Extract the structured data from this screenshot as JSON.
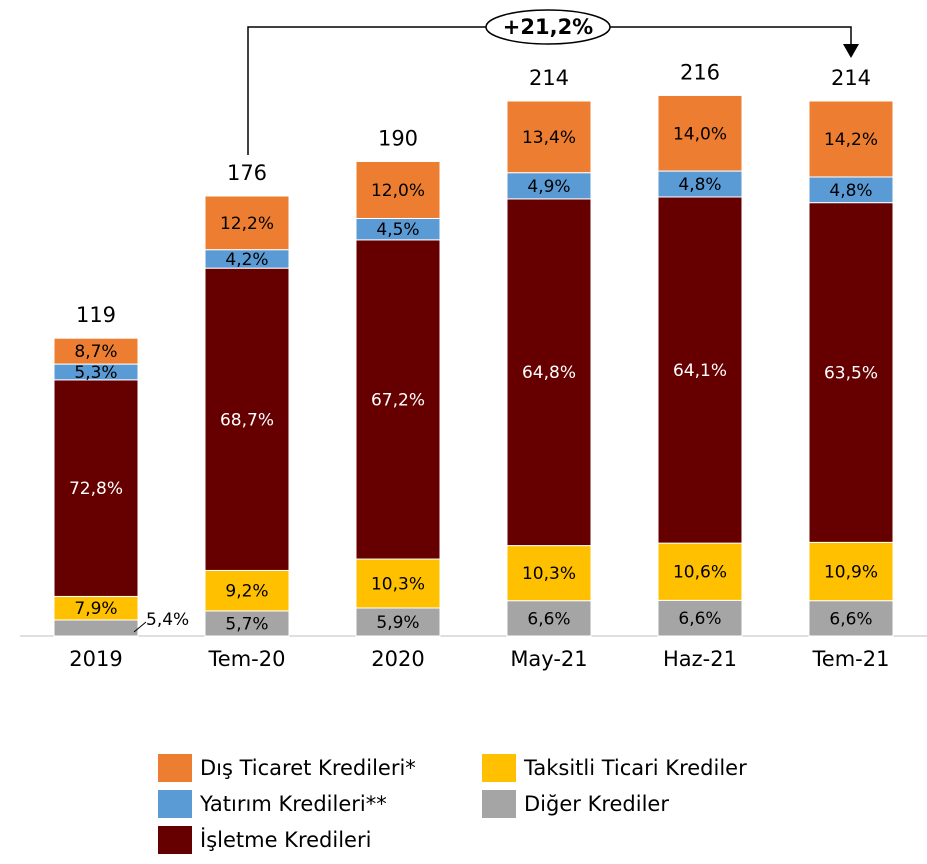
{
  "chart_data": {
    "type": "bar",
    "categories": [
      "2019",
      "Tem-20",
      "2020",
      "May-21",
      "Haz-21",
      "Tem-21"
    ],
    "totals": [
      119,
      176,
      190,
      214,
      216,
      214
    ],
    "series": [
      {
        "name": "Diğer Krediler",
        "color": "#a5a5a5",
        "values": [
          5.4,
          5.7,
          5.9,
          6.6,
          6.6,
          6.6
        ],
        "value_labels": [
          "5,4%",
          "5,7%",
          "5,9%",
          "6,6%",
          "6,6%",
          "6,6%"
        ]
      },
      {
        "name": "Taksitli Ticari Krediler",
        "color": "#ffc000",
        "values": [
          7.9,
          9.2,
          10.3,
          10.3,
          10.6,
          10.9
        ],
        "value_labels": [
          "7,9%",
          "9,2%",
          "10,3%",
          "10,3%",
          "10,6%",
          "10,9%"
        ]
      },
      {
        "name": "İşletme Kredileri",
        "color": "#660000",
        "values": [
          72.8,
          68.7,
          67.2,
          64.8,
          64.1,
          63.5
        ],
        "value_labels": [
          "72,8%",
          "68,7%",
          "67,2%",
          "64,8%",
          "64,1%",
          "63,5%"
        ]
      },
      {
        "name": "Yatırım Kredileri**",
        "color": "#5b9bd5",
        "values": [
          5.3,
          4.2,
          4.5,
          4.9,
          4.8,
          4.8
        ],
        "value_labels": [
          "5,3%",
          "4,2%",
          "4,5%",
          "4,9%",
          "4,8%",
          "4,8%"
        ]
      },
      {
        "name": "Dış Ticaret Kredileri*",
        "color": "#ed7d31",
        "values": [
          8.7,
          12.2,
          12.0,
          13.4,
          14.0,
          14.2
        ],
        "value_labels": [
          "8,7%",
          "12,2%",
          "12,0%",
          "13,4%",
          "14,0%",
          "14,2%"
        ]
      }
    ],
    "annotation": "+21,2%"
  }
}
